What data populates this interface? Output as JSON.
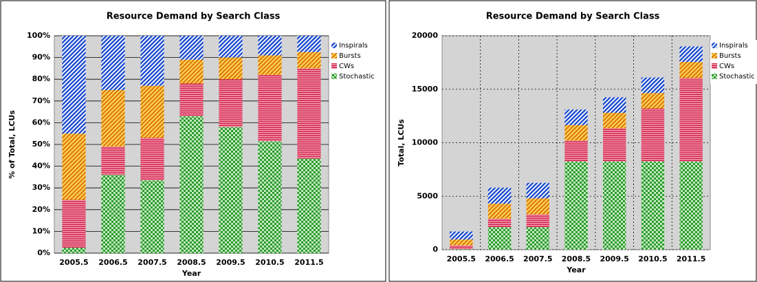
{
  "chart_data": [
    {
      "type": "bar",
      "stacked": true,
      "title": "Resource Demand by Search Class",
      "x_label": "Year",
      "y_label": "% of Total, LCUs",
      "categories": [
        "2005.5",
        "2006.5",
        "2007.5",
        "2008.5",
        "2009.5",
        "2010.5",
        "2011.5"
      ],
      "series": [
        {
          "name": "Stochastic",
          "color": "#2f9a2f",
          "values": [
            2.5,
            36,
            33.5,
            63,
            58,
            51.5,
            43.5
          ]
        },
        {
          "name": "CWs",
          "color": "#d0204a",
          "values": [
            22,
            13,
            19.5,
            15,
            22,
            30.5,
            41.5
          ]
        },
        {
          "name": "Bursts",
          "color": "#e07c10",
          "values": [
            30.5,
            26,
            24,
            11,
            10,
            9,
            7.5
          ]
        },
        {
          "name": "Inspirals",
          "color": "#1f4fcf",
          "values": [
            45,
            25,
            23,
            11,
            10,
            9,
            7.5
          ]
        }
      ],
      "ylim": [
        0,
        100
      ],
      "yticks": [
        {
          "value": 0,
          "label": "0%"
        },
        {
          "value": 10,
          "label": "10%"
        },
        {
          "value": 20,
          "label": "20%"
        },
        {
          "value": 30,
          "label": "30%"
        },
        {
          "value": 40,
          "label": "40%"
        },
        {
          "value": 50,
          "label": "50%"
        },
        {
          "value": 60,
          "label": "60%"
        },
        {
          "value": 70,
          "label": "70%"
        },
        {
          "value": 80,
          "label": "80%"
        },
        {
          "value": 90,
          "label": "90%"
        },
        {
          "value": 100,
          "label": "100%"
        }
      ],
      "grid": true,
      "grid_style": "solid",
      "legend": "right"
    },
    {
      "type": "bar",
      "stacked": true,
      "title": "Resource Demand by Search Class",
      "x_label": "Year",
      "y_label": "Total, LCUs",
      "categories": [
        "2005.5",
        "2006.5",
        "2007.5",
        "2008.5",
        "2009.5",
        "2010.5",
        "2011.5"
      ],
      "series": [
        {
          "name": "Stochastic",
          "color": "#2f9a2f",
          "values": [
            50,
            2100,
            2100,
            8250,
            8250,
            8250,
            8250
          ]
        },
        {
          "name": "CWs",
          "color": "#d0204a",
          "values": [
            350,
            800,
            1200,
            1950,
            3100,
            4950,
            7800
          ]
        },
        {
          "name": "Bursts",
          "color": "#e07c10",
          "values": [
            550,
            1400,
            1500,
            1450,
            1450,
            1450,
            1500
          ]
        },
        {
          "name": "Inspirals",
          "color": "#1f4fcf",
          "values": [
            750,
            1500,
            1450,
            1450,
            1450,
            1450,
            1450
          ]
        }
      ],
      "ylim": [
        0,
        20000
      ],
      "yticks": [
        0,
        5000,
        10000,
        15000,
        20000
      ],
      "grid": true,
      "grid_style": "dashed",
      "legend": "right"
    }
  ]
}
